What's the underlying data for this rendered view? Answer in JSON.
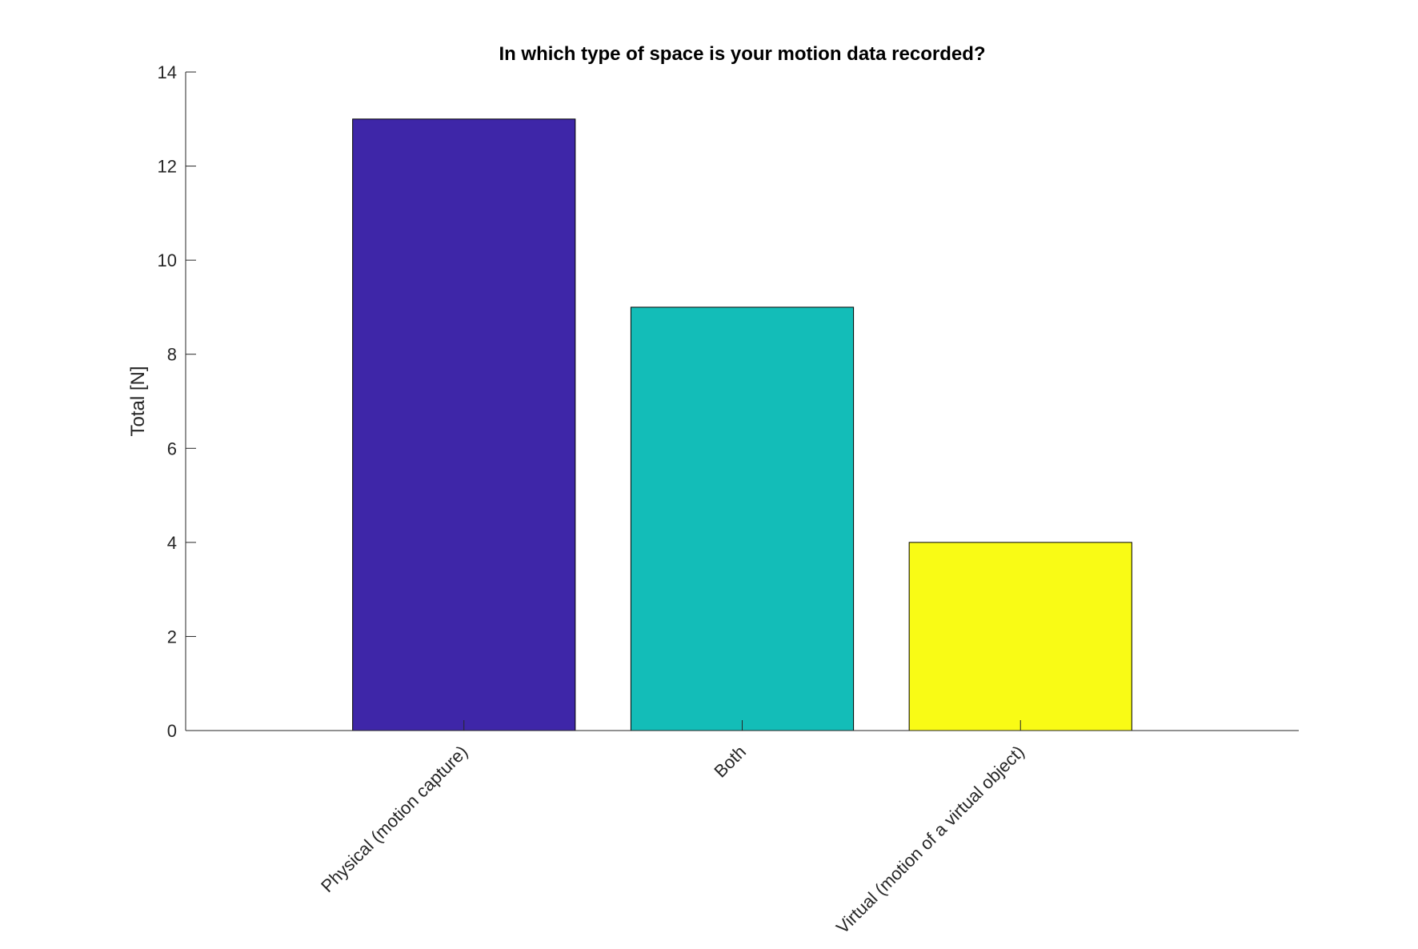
{
  "chart_data": {
    "type": "bar",
    "title": "In which type of space is your motion data recorded?",
    "xlabel": "",
    "ylabel": "Total [N]",
    "ylim": [
      0,
      14
    ],
    "yticks": [
      0,
      2,
      4,
      6,
      8,
      10,
      12,
      14
    ],
    "categories": [
      "Physical (motion capture)",
      "Both",
      "Virtual (motion of a virtual object)"
    ],
    "values": [
      13,
      9,
      4
    ],
    "colors": [
      "#3e26a8",
      "#13bdb8",
      "#f9fb15"
    ],
    "grid": false,
    "legend": null
  }
}
